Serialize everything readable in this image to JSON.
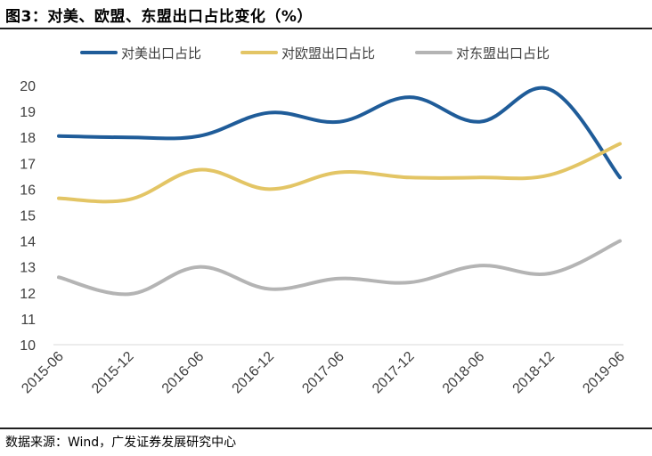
{
  "title": "图3：对美、欧盟、东盟出口占比变化（%）",
  "source": "数据来源：Wind，广发证券发展研究中心",
  "chart_data": {
    "type": "line",
    "title": "图3：对美、欧盟、东盟出口占比变化（%）",
    "xlabel": "",
    "ylabel": "",
    "categories": [
      "2015-06",
      "2015-12",
      "2016-06",
      "2016-12",
      "2017-06",
      "2017-12",
      "2018-06",
      "2018-12",
      "2019-06"
    ],
    "ylim": [
      10,
      20
    ],
    "yticks": [
      "10",
      "11",
      "12",
      "13",
      "14",
      "15",
      "16",
      "17",
      "18",
      "19",
      "20"
    ],
    "grid": "none",
    "legend_position": "top",
    "series": [
      {
        "name": "对美出口占比",
        "color": "#1f5c99",
        "x": [
          0,
          1,
          2,
          3,
          4,
          5,
          6,
          7,
          8
        ],
        "values": [
          18.05,
          18.0,
          18.05,
          18.95,
          18.6,
          19.55,
          18.6,
          19.85,
          16.45
        ]
      },
      {
        "name": "对欧盟出口占比",
        "color": "#e3c565",
        "x": [
          0,
          1,
          2,
          3,
          4,
          5,
          6,
          7,
          8
        ],
        "values": [
          15.65,
          15.6,
          16.75,
          16.0,
          16.65,
          16.45,
          16.45,
          16.55,
          17.75
        ]
      },
      {
        "name": "对东盟出口占比",
        "color": "#b4b4b4",
        "x": [
          0,
          1,
          2,
          3,
          4,
          5,
          6,
          7,
          8
        ],
        "values": [
          12.6,
          11.95,
          13.0,
          12.15,
          12.55,
          12.4,
          13.05,
          12.75,
          14.0
        ]
      }
    ]
  }
}
